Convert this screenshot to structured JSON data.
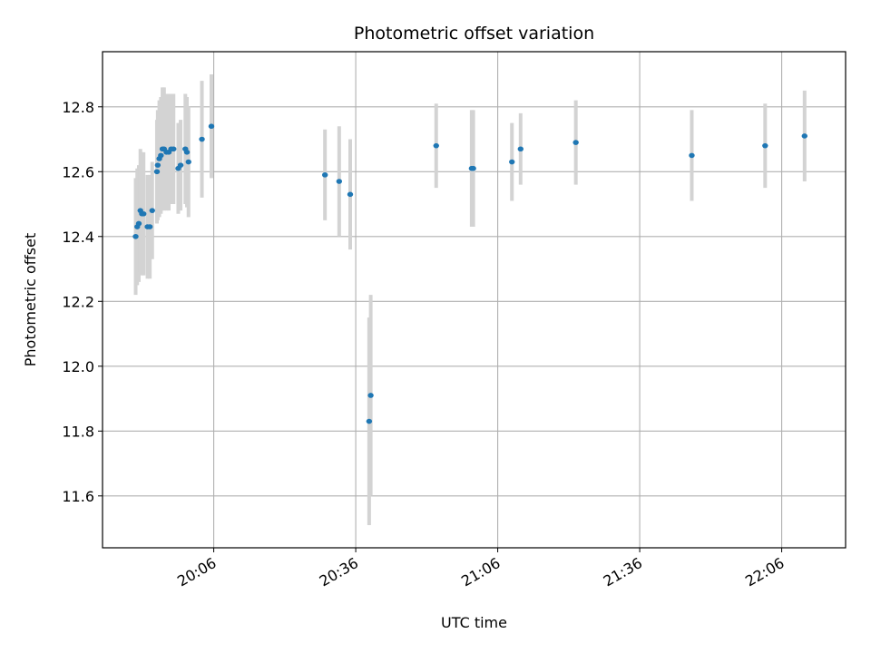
{
  "chart_data": {
    "type": "scatter",
    "title": "Photometric offset variation",
    "xlabel": "UTC time",
    "ylabel": "Photometric offset",
    "grid": true,
    "xlim": [
      "19:42:30",
      "22:19:30"
    ],
    "ylim": [
      11.44,
      12.97
    ],
    "x_ticks": [
      "20:06",
      "20:36",
      "21:06",
      "21:36",
      "22:06"
    ],
    "y_ticks": [
      "11.6",
      "11.8",
      "12.0",
      "12.2",
      "12.4",
      "12.6",
      "12.8"
    ],
    "colors": {
      "points": "#1f77b4",
      "errorbars": "#d3d3d3",
      "grid": "#b0b0b0"
    },
    "series": [
      {
        "marker": "point",
        "errorbars": true,
        "points": [
          {
            "x": "19:49:30",
            "y": 12.4,
            "yerr": 0.18
          },
          {
            "x": "19:49:50",
            "y": 12.43,
            "yerr": 0.18
          },
          {
            "x": "19:50:10",
            "y": 12.44,
            "yerr": 0.18
          },
          {
            "x": "19:50:30",
            "y": 12.48,
            "yerr": 0.19
          },
          {
            "x": "19:50:50",
            "y": 12.47,
            "yerr": 0.19
          },
          {
            "x": "19:51:10",
            "y": 12.47,
            "yerr": 0.19
          },
          {
            "x": "19:52:00",
            "y": 12.43,
            "yerr": 0.16
          },
          {
            "x": "19:52:30",
            "y": 12.43,
            "yerr": 0.16
          },
          {
            "x": "19:53:00",
            "y": 12.48,
            "yerr": 0.15
          },
          {
            "x": "19:54:00",
            "y": 12.6,
            "yerr": 0.16
          },
          {
            "x": "19:54:10",
            "y": 12.62,
            "yerr": 0.17
          },
          {
            "x": "19:54:30",
            "y": 12.64,
            "yerr": 0.18
          },
          {
            "x": "19:54:50",
            "y": 12.65,
            "yerr": 0.18
          },
          {
            "x": "19:55:10",
            "y": 12.67,
            "yerr": 0.19
          },
          {
            "x": "19:55:30",
            "y": 12.67,
            "yerr": 0.19
          },
          {
            "x": "19:56:00",
            "y": 12.66,
            "yerr": 0.18
          },
          {
            "x": "19:56:30",
            "y": 12.66,
            "yerr": 0.18
          },
          {
            "x": "19:57:00",
            "y": 12.67,
            "yerr": 0.17
          },
          {
            "x": "19:57:30",
            "y": 12.67,
            "yerr": 0.17
          },
          {
            "x": "19:58:30",
            "y": 12.61,
            "yerr": 0.14
          },
          {
            "x": "19:59:00",
            "y": 12.62,
            "yerr": 0.14
          },
          {
            "x": "20:00:00",
            "y": 12.67,
            "yerr": 0.17
          },
          {
            "x": "20:00:20",
            "y": 12.66,
            "yerr": 0.17
          },
          {
            "x": "20:00:40",
            "y": 12.63,
            "yerr": 0.17
          },
          {
            "x": "20:03:30",
            "y": 12.7,
            "yerr": 0.18
          },
          {
            "x": "20:05:30",
            "y": 12.74,
            "yerr": 0.16
          },
          {
            "x": "20:29:30",
            "y": 12.59,
            "yerr": 0.14
          },
          {
            "x": "20:32:30",
            "y": 12.57,
            "yerr": 0.17
          },
          {
            "x": "20:34:50",
            "y": 12.53,
            "yerr": 0.17
          },
          {
            "x": "20:38:50",
            "y": 11.83,
            "yerr": 0.32
          },
          {
            "x": "20:39:10",
            "y": 11.91,
            "yerr": 0.31
          },
          {
            "x": "20:53:00",
            "y": 12.68,
            "yerr": 0.13
          },
          {
            "x": "21:00:30",
            "y": 12.61,
            "yerr": 0.18
          },
          {
            "x": "21:00:50",
            "y": 12.61,
            "yerr": 0.18
          },
          {
            "x": "21:09:00",
            "y": 12.63,
            "yerr": 0.12
          },
          {
            "x": "21:10:50",
            "y": 12.67,
            "yerr": 0.11
          },
          {
            "x": "21:22:30",
            "y": 12.69,
            "yerr": 0.13
          },
          {
            "x": "21:47:00",
            "y": 12.65,
            "yerr": 0.14
          },
          {
            "x": "22:02:30",
            "y": 12.68,
            "yerr": 0.13
          },
          {
            "x": "22:10:50",
            "y": 12.71,
            "yerr": 0.14
          }
        ]
      }
    ]
  }
}
